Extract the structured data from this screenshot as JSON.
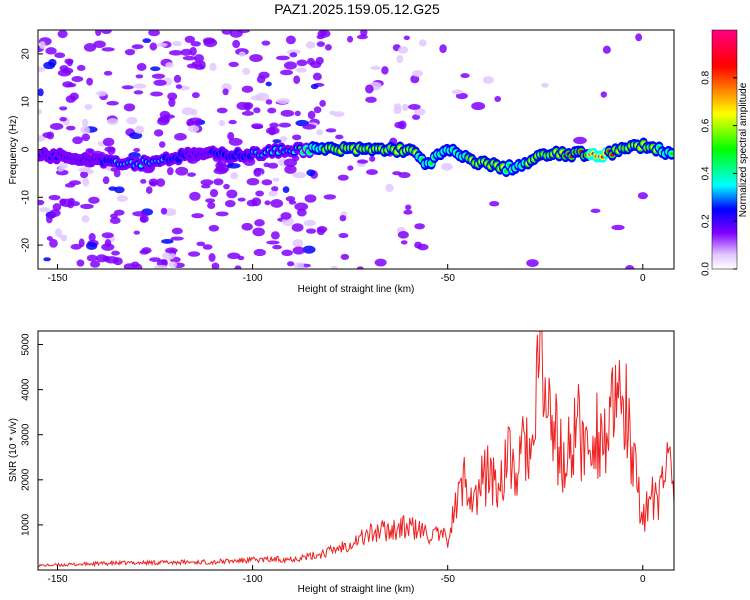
{
  "chart_data": [
    {
      "type": "heatmap",
      "title": "PAZ1.2025.159.05.12.G25",
      "xlabel": "Height of straight line (km)",
      "ylabel": "Frequency (Hz)",
      "xlim": [
        -155,
        8
      ],
      "ylim": [
        -25,
        25
      ],
      "x_ticks": [
        -150,
        -100,
        -50,
        0
      ],
      "y_ticks": [
        -20,
        -10,
        0,
        10,
        20
      ],
      "x_tick_labels": [
        "-150",
        "-100",
        "-50",
        "0"
      ],
      "y_tick_labels": [
        "-20",
        "-10",
        "0",
        "10",
        "20"
      ],
      "colorbar": {
        "label": "Normalized spectral amplitude",
        "range": [
          0.0,
          1.0
        ],
        "ticks": [
          0.0,
          0.2,
          0.4,
          0.6,
          0.8
        ],
        "tick_labels": [
          "0.0",
          "0.2",
          "0.4",
          "0.6",
          "0.8"
        ],
        "colors": [
          "#ffffff",
          "#e0c8ff",
          "#8000ff",
          "#0000ff",
          "#00ffff",
          "#00ff00",
          "#ffff00",
          "#ff0000",
          "#ff0080"
        ]
      },
      "ridge": {
        "x": [
          -155,
          -140,
          -130,
          -115,
          -100,
          -90,
          -80,
          -70,
          -60,
          -55,
          -50,
          -45,
          -40,
          -35,
          -30,
          -25,
          -20,
          -10,
          -5,
          0,
          8
        ],
        "frequency": [
          -1,
          -2,
          -3,
          -1,
          -1,
          0,
          0,
          0,
          0,
          -3,
          0,
          -2,
          -3,
          -4,
          -3,
          -1,
          -1,
          -1,
          0,
          1,
          -1
        ],
        "amplitude": [
          0.15,
          0.2,
          0.3,
          0.2,
          0.25,
          0.3,
          0.55,
          0.6,
          0.55,
          0.45,
          0.45,
          0.5,
          0.55,
          0.5,
          0.5,
          0.6,
          0.65,
          0.75,
          0.55,
          0.55,
          0.45
        ]
      }
    },
    {
      "type": "line",
      "xlabel": "Height of straight line (km)",
      "ylabel": "SNR (10 * v/v)",
      "xlim": [
        -155,
        8
      ],
      "ylim": [
        0,
        5300
      ],
      "x_ticks": [
        -150,
        -100,
        -50,
        0
      ],
      "y_ticks": [
        1000,
        2000,
        3000,
        4000,
        5000
      ],
      "x_tick_labels": [
        "-150",
        "-100",
        "-50",
        "0"
      ],
      "y_tick_labels": [
        "1000",
        "2000",
        "3000",
        "4000",
        "5000"
      ],
      "color": "#ee2222",
      "series": [
        {
          "x": [
            -155,
            -150,
            -140,
            -130,
            -120,
            -110,
            -100,
            -90,
            -85,
            -80,
            -75,
            -70,
            -65,
            -60,
            -55,
            -50,
            -47,
            -45,
            -43,
            -40,
            -37,
            -35,
            -32,
            -30,
            -28,
            -27,
            -26,
            -25,
            -23,
            -20,
            -17,
            -15,
            -12,
            -10,
            -8,
            -6,
            -5,
            -4,
            -3,
            -2,
            0,
            2,
            4,
            6,
            8
          ],
          "values": [
            100,
            110,
            140,
            160,
            170,
            180,
            220,
            250,
            300,
            420,
            600,
            800,
            900,
            950,
            800,
            700,
            1700,
            2100,
            1500,
            2200,
            1800,
            2500,
            2100,
            2900,
            2400,
            4000,
            5200,
            3700,
            3200,
            2200,
            3300,
            2600,
            3100,
            2900,
            3300,
            3600,
            3800,
            3400,
            2300,
            2100,
            1200,
            1600,
            1400,
            2500,
            2100
          ]
        }
      ]
    }
  ]
}
